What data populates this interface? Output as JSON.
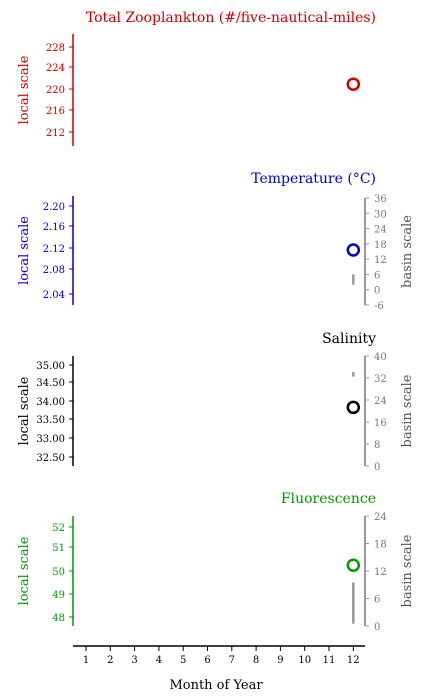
{
  "chart_data": [
    {
      "id": "zoo",
      "type": "scatter",
      "title": "Total Zooplankton (#/five-nautical-miles)",
      "color": "#cc0000",
      "ylabel_left": "local scale",
      "ylabel_right": "",
      "left_ticks": [
        "228",
        "224",
        "220",
        "216",
        "212"
      ],
      "left_lim": [
        210,
        230
      ],
      "right_ticks": [],
      "right_lim": null,
      "points": [
        {
          "x": 12,
          "y": 221
        }
      ],
      "basin_range": null
    },
    {
      "id": "temp",
      "type": "scatter",
      "title": "Temperature (°C)",
      "color": "#0000cc",
      "ylabel_left": "local scale",
      "ylabel_right": "basin scale",
      "left_ticks": [
        "2.20",
        "2.16",
        "2.12",
        "2.08",
        "2.04"
      ],
      "left_lim": [
        2.02,
        2.22
      ],
      "right_ticks": [
        "36",
        "30",
        "24",
        "18",
        "12",
        "6",
        "0",
        "-6"
      ],
      "right_lim": [
        -6,
        36
      ],
      "points": [
        {
          "x": 12,
          "y": 2.12
        }
      ],
      "basin_range": [
        2,
        6
      ]
    },
    {
      "id": "sal",
      "type": "scatter",
      "title": "Salinity",
      "color": "#000000",
      "ylabel_left": "local scale",
      "ylabel_right": "basin scale",
      "left_ticks": [
        "35.00",
        "34.50",
        "34.00",
        "33.50",
        "33.00",
        "32.50"
      ],
      "left_lim": [
        32.2,
        35.3
      ],
      "right_ticks": [
        "40",
        "32",
        "24",
        "16",
        "8",
        "0"
      ],
      "right_lim": [
        0,
        40
      ],
      "points": [
        {
          "x": 12,
          "y": 33.85
        }
      ],
      "basin_range": [
        32.5,
        34.2
      ]
    },
    {
      "id": "fluor",
      "type": "scatter",
      "title": "Fluorescence",
      "color": "#009900",
      "ylabel_left": "local scale",
      "ylabel_right": "basin scale",
      "left_ticks": [
        "52",
        "51",
        "50",
        "49",
        "48"
      ],
      "left_lim": [
        47.5,
        52.5
      ],
      "right_ticks": [
        "24",
        "18",
        "12",
        "6",
        "0"
      ],
      "right_lim": [
        0,
        24
      ],
      "points": [
        {
          "x": 12,
          "y": 50.3
        }
      ],
      "basin_range": [
        0.5,
        9.5
      ]
    }
  ],
  "xaxis": {
    "label": "Month of Year",
    "ticks": [
      "1",
      "2",
      "3",
      "4",
      "5",
      "6",
      "7",
      "8",
      "9",
      "10",
      "11",
      "12"
    ]
  },
  "colors": {
    "basin": "#999999",
    "axis": "#000000"
  }
}
